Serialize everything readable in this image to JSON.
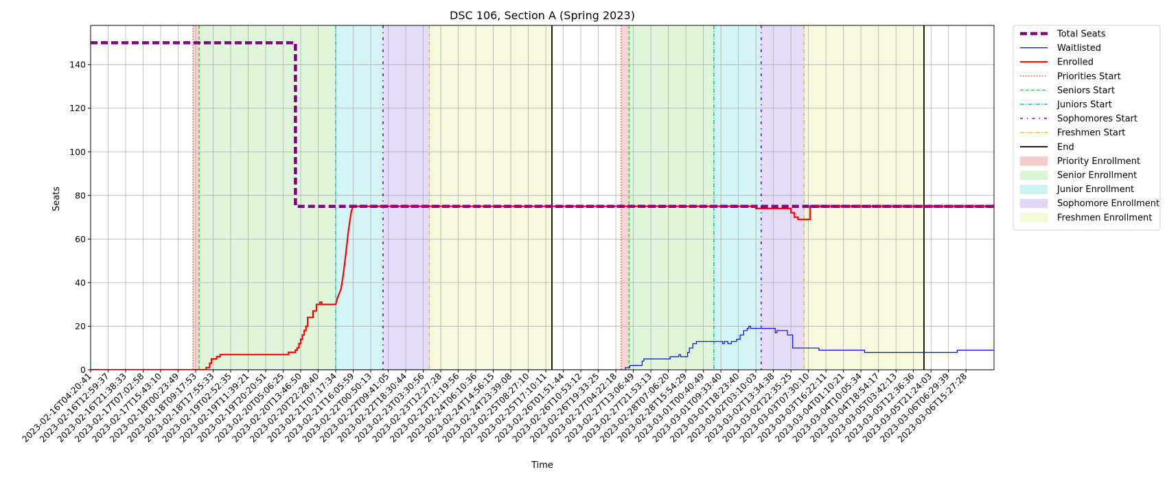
{
  "chart_data": {
    "type": "line",
    "title": "DSC 106, Section A (Spring 2023)",
    "xlabel": "Time",
    "ylabel": "Seats",
    "ylim": [
      0,
      158
    ],
    "yticks": [
      0,
      20,
      40,
      60,
      80,
      100,
      120,
      140
    ],
    "grid": true,
    "legend_position": "outside-right",
    "x_tick_labels": [
      "2023-02-16T04:20:41",
      "2023-02-16T12:59:37",
      "2023-02-16T21:38:33",
      "2023-02-17T07:02:58",
      "2023-02-17T15:43:10",
      "2023-02-18T00:23:49",
      "2023-02-18T09:17:53",
      "2023-02-18T17:55:33",
      "2023-02-19T02:52:35",
      "2023-02-19T11:39:21",
      "2023-02-19T20:20:51",
      "2023-02-20T05:06:25",
      "2023-02-20T13:46:50",
      "2023-02-20T22:28:40",
      "2023-02-21T07:17:34",
      "2023-02-21T16:05:59",
      "2023-02-22T00:50:13",
      "2023-02-22T09:41:05",
      "2023-02-22T18:30:44",
      "2023-02-23T03:30:56",
      "2023-02-23T12:27:28",
      "2023-02-23T21:19:56",
      "2023-02-24T06:10:36",
      "2023-02-24T14:56:15",
      "2023-02-24T23:39:08",
      "2023-02-25T08:27:10",
      "2023-02-25T17:10:11",
      "2023-02-26T01:51:44",
      "2023-02-26T10:53:12",
      "2023-02-26T19:33:25",
      "2023-02-27T04:22:18",
      "2023-02-27T13:06:49",
      "2023-02-27T21:53:13",
      "2023-02-28T07:06:20",
      "2023-02-28T15:54:29",
      "2023-03-01T00:40:49",
      "2023-03-01T09:33:40",
      "2023-03-01T18:23:40",
      "2023-03-02T03:10:03",
      "2023-03-02T13:34:38",
      "2023-03-02T22:35:25",
      "2023-03-03T07:30:10",
      "2023-03-03T16:22:11",
      "2023-03-04T01:10:21",
      "2023-03-04T10:05:34",
      "2023-03-04T18:54:17",
      "2023-03-05T03:42:13",
      "2023-03-05T12:36:36",
      "2023-03-05T21:24:03",
      "2023-03-06T06:29:39",
      "2023-03-06T15:27:28"
    ],
    "x_range_index": [
      0,
      51.6
    ],
    "regions": [
      {
        "name": "Priority Enrollment",
        "color": "#f4cccc",
        "from": 5.85,
        "to": 6.2
      },
      {
        "name": "Senior Enrollment",
        "color": "#d9f5d3",
        "from": 6.2,
        "to": 14.0
      },
      {
        "name": "Junior Enrollment",
        "color": "#cdf2f3",
        "from": 14.0,
        "to": 16.7
      },
      {
        "name": "Sophomore Enrollment",
        "color": "#e2d5f5",
        "from": 16.7,
        "to": 19.35
      },
      {
        "name": "Freshmen Enrollment",
        "color": "#f7f7d9",
        "from": 19.35,
        "to": 26.35
      },
      {
        "name": "Priority Enrollment",
        "color": "#f4cccc",
        "from": 30.3,
        "to": 30.75
      },
      {
        "name": "Senior Enrollment",
        "color": "#d9f5d3",
        "from": 30.75,
        "to": 35.6
      },
      {
        "name": "Junior Enrollment",
        "color": "#cdf2f3",
        "from": 35.6,
        "to": 38.3
      },
      {
        "name": "Sophomore Enrollment",
        "color": "#e2d5f5",
        "from": 38.3,
        "to": 40.75
      },
      {
        "name": "Freshmen Enrollment",
        "color": "#f7f7d9",
        "from": 40.75,
        "to": 47.6
      }
    ],
    "markers": [
      {
        "name": "Priorities Start",
        "at": [
          5.85,
          30.3
        ]
      },
      {
        "name": "Seniors Start",
        "at": [
          6.2,
          30.75
        ]
      },
      {
        "name": "Juniors Start",
        "at": [
          14.0,
          35.6
        ]
      },
      {
        "name": "Sophomores Start",
        "at": [
          16.7,
          38.3
        ]
      },
      {
        "name": "Freshmen Start",
        "at": [
          19.35,
          40.75
        ]
      },
      {
        "name": "End",
        "at": [
          26.35,
          47.6
        ]
      }
    ],
    "series": [
      {
        "name": "Total Seats",
        "color": "#800080",
        "points": [
          [
            0,
            150
          ],
          [
            11.7,
            150
          ],
          [
            11.7,
            75
          ],
          [
            51.6,
            75
          ]
        ]
      },
      {
        "name": "Waitlisted",
        "color": "#0000ff",
        "points": [
          [
            0,
            0
          ],
          [
            30.55,
            0
          ],
          [
            30.55,
            1
          ],
          [
            30.8,
            1
          ],
          [
            30.8,
            2
          ],
          [
            31.5,
            2
          ],
          [
            31.5,
            4
          ],
          [
            31.6,
            4
          ],
          [
            31.6,
            5
          ],
          [
            33.1,
            5
          ],
          [
            33.1,
            6
          ],
          [
            33.6,
            6
          ],
          [
            33.6,
            7
          ],
          [
            33.7,
            7
          ],
          [
            33.7,
            6
          ],
          [
            34.1,
            6
          ],
          [
            34.1,
            8
          ],
          [
            34.2,
            8
          ],
          [
            34.2,
            10
          ],
          [
            34.4,
            10
          ],
          [
            34.4,
            12
          ],
          [
            34.6,
            12
          ],
          [
            34.6,
            13
          ],
          [
            36.1,
            13
          ],
          [
            36.1,
            12
          ],
          [
            36.2,
            12
          ],
          [
            36.2,
            13
          ],
          [
            36.4,
            13
          ],
          [
            36.4,
            12
          ],
          [
            36.6,
            12
          ],
          [
            36.6,
            13
          ],
          [
            36.9,
            13
          ],
          [
            36.9,
            14
          ],
          [
            37.1,
            14
          ],
          [
            37.1,
            16
          ],
          [
            37.3,
            16
          ],
          [
            37.3,
            18
          ],
          [
            37.5,
            18
          ],
          [
            37.5,
            19
          ],
          [
            37.6,
            19
          ],
          [
            37.6,
            20
          ],
          [
            37.7,
            20
          ],
          [
            37.7,
            19
          ],
          [
            39.1,
            19
          ],
          [
            39.1,
            17
          ],
          [
            39.2,
            17
          ],
          [
            39.2,
            18
          ],
          [
            39.8,
            18
          ],
          [
            39.8,
            16
          ],
          [
            40.1,
            16
          ],
          [
            40.1,
            10
          ],
          [
            41.6,
            10
          ],
          [
            41.6,
            9
          ],
          [
            44.2,
            9
          ],
          [
            44.2,
            8
          ],
          [
            49.5,
            8
          ],
          [
            49.5,
            9
          ],
          [
            51.6,
            9
          ]
        ]
      },
      {
        "name": "Enrolled",
        "color": "#ff0000",
        "points": [
          [
            0,
            0
          ],
          [
            6.6,
            0
          ],
          [
            6.6,
            1
          ],
          [
            6.8,
            1
          ],
          [
            6.8,
            3
          ],
          [
            6.9,
            3
          ],
          [
            6.9,
            5
          ],
          [
            7.2,
            5
          ],
          [
            7.2,
            6
          ],
          [
            7.4,
            6
          ],
          [
            7.4,
            7
          ],
          [
            11.3,
            7
          ],
          [
            11.3,
            8
          ],
          [
            11.7,
            8
          ],
          [
            11.7,
            9
          ],
          [
            11.8,
            9
          ],
          [
            11.8,
            10
          ],
          [
            11.9,
            10
          ],
          [
            11.9,
            12
          ],
          [
            12.0,
            12
          ],
          [
            12.0,
            14
          ],
          [
            12.1,
            14
          ],
          [
            12.1,
            16
          ],
          [
            12.2,
            16
          ],
          [
            12.2,
            18
          ],
          [
            12.3,
            18
          ],
          [
            12.3,
            20
          ],
          [
            12.4,
            20
          ],
          [
            12.4,
            24
          ],
          [
            12.7,
            24
          ],
          [
            12.7,
            27
          ],
          [
            12.9,
            27
          ],
          [
            12.9,
            30
          ],
          [
            13.1,
            30
          ],
          [
            13.1,
            31
          ],
          [
            13.2,
            31
          ],
          [
            13.2,
            30
          ],
          [
            14.0,
            30
          ],
          [
            14.1,
            33
          ],
          [
            14.2,
            35
          ],
          [
            14.3,
            37
          ],
          [
            14.4,
            42
          ],
          [
            14.5,
            48
          ],
          [
            14.6,
            55
          ],
          [
            14.7,
            62
          ],
          [
            14.8,
            68
          ],
          [
            14.9,
            73
          ],
          [
            15.0,
            75
          ],
          [
            38.0,
            75
          ],
          [
            38.0,
            74
          ],
          [
            40.0,
            74
          ],
          [
            40.0,
            72
          ],
          [
            40.2,
            72
          ],
          [
            40.2,
            70
          ],
          [
            40.4,
            70
          ],
          [
            40.4,
            69
          ],
          [
            41.1,
            69
          ],
          [
            41.1,
            75
          ],
          [
            51.6,
            75
          ]
        ]
      }
    ]
  },
  "legend": {
    "items": [
      {
        "label": "Total Seats",
        "kind": "line",
        "color": "#800080",
        "width": 4.5,
        "dash": "10,5"
      },
      {
        "label": "Waitlisted",
        "kind": "line",
        "color": "#0000ff",
        "width": 1.2,
        "dash": ""
      },
      {
        "label": "Enrolled",
        "kind": "line",
        "color": "#ff0000",
        "width": 2.2,
        "dash": ""
      },
      {
        "label": "Priorities Start",
        "kind": "line",
        "color": "#ff4500",
        "width": 1.4,
        "dash": "1.5,2.5"
      },
      {
        "label": "Seniors Start",
        "kind": "line",
        "color": "#32cd32",
        "width": 1.4,
        "dash": "5,3"
      },
      {
        "label": "Juniors Start",
        "kind": "line",
        "color": "#00bfbf",
        "width": 1.4,
        "dash": "6,2,1.5,2"
      },
      {
        "label": "Sophomores Start",
        "kind": "line",
        "color": "#7000dd",
        "width": 1.6,
        "dash": "4,6,1.5,6"
      },
      {
        "label": "Freshmen Start",
        "kind": "line",
        "color": "#e6c300",
        "width": 1.4,
        "dash": "6,2,1.5,2"
      },
      {
        "label": "End",
        "kind": "line",
        "color": "#000000",
        "width": 1.8,
        "dash": ""
      },
      {
        "label": "Priority Enrollment",
        "kind": "patch",
        "color": "#f4cccc",
        "width": 0,
        "dash": ""
      },
      {
        "label": "Senior Enrollment",
        "kind": "patch",
        "color": "#d9f5d3",
        "width": 0,
        "dash": ""
      },
      {
        "label": "Junior Enrollment",
        "kind": "patch",
        "color": "#cdf2f3",
        "width": 0,
        "dash": ""
      },
      {
        "label": "Sophomore Enrollment",
        "kind": "patch",
        "color": "#e2d5f5",
        "width": 0,
        "dash": ""
      },
      {
        "label": "Freshmen Enrollment",
        "kind": "patch",
        "color": "#f7f7d9",
        "width": 0,
        "dash": ""
      }
    ]
  }
}
